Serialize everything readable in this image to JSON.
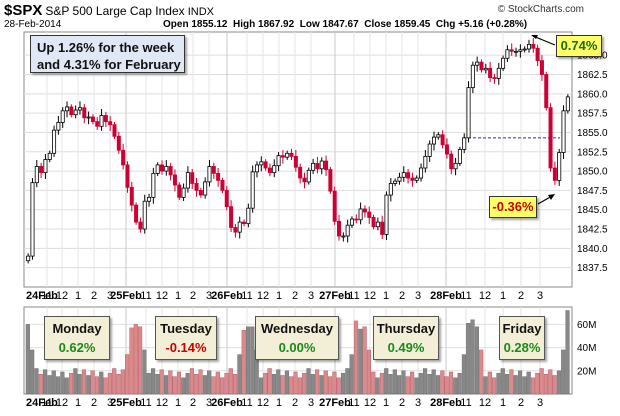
{
  "header": {
    "symbol": "$SPX",
    "name": "S&P 500 Large Cap Index",
    "exchange": "INDX",
    "date": "28-Feb-2014",
    "ohlc_text": "Open 1855.12  High 1867.92  Low 1847.67  Close 1859.45  Chg +5.16 (+0.28%)",
    "watermark": "© StockCharts.com"
  },
  "annotations": {
    "week_line1": "Up 1.26% for the week",
    "week_line2": "and 4.31% for February",
    "high_pct": "0.74%",
    "low_pct": "-0.36%"
  },
  "days": [
    {
      "name": "Monday",
      "value": "0.62%",
      "color": "#1a8a1a"
    },
    {
      "name": "Tuesday",
      "value": "-0.14%",
      "color": "#cc0000"
    },
    {
      "name": "Wednesday",
      "value": "0.00%",
      "color": "#1a8a1a"
    },
    {
      "name": "Thursday",
      "value": "0.49%",
      "color": "#1a8a1a"
    },
    {
      "name": "Friday",
      "value": "0.28%",
      "color": "#1a8a1a"
    }
  ],
  "colors": {
    "up": "#000000",
    "down": "#cc0033",
    "vol_up": "#888888",
    "vol_down": "#d98a8a",
    "ann_yellow": "#ffff66",
    "day_bg": "#f2efd6"
  },
  "chart_data": {
    "type": "candlestick",
    "title": "S&P 500 Large Cap Index",
    "ylim": [
      1835,
      1868
    ],
    "y_ticks": [
      "1837.5",
      "1840.0",
      "1842.5",
      "1845.0",
      "1847.5",
      "1850.0",
      "1852.5",
      "1855.0",
      "1857.5",
      "1860.0",
      "1862.5",
      "1865.0"
    ],
    "x_tick_labels": [
      "24Feb",
      "11",
      "12",
      "1",
      "2",
      "3",
      "25Feb",
      "11",
      "12",
      "1",
      "2",
      "3",
      "26Feb",
      "11",
      "12",
      "1",
      "2",
      "3",
      "27Feb",
      "11",
      "12",
      "1",
      "2",
      "3",
      "28Feb",
      "11",
      "12",
      "1",
      "2",
      "3"
    ],
    "previous_close_reference": 1854.3,
    "volume_ticks": [
      "20M",
      "40M",
      "60M"
    ],
    "volume_ylim": [
      0,
      75
    ],
    "closes": [
      1839.0,
      1848.5,
      1850.6,
      1849.8,
      1851.5,
      1852.3,
      1855.3,
      1856.3,
      1857.8,
      1858.3,
      1857.3,
      1857.9,
      1858.2,
      1856.9,
      1857.0,
      1856.4,
      1855.8,
      1857.2,
      1856.4,
      1856.0,
      1854.5,
      1852.7,
      1850.8,
      1847.9,
      1845.6,
      1843.4,
      1842.5,
      1846.1,
      1846.6,
      1849.7,
      1850.8,
      1850.0,
      1850.6,
      1849.5,
      1848.2,
      1846.6,
      1847.8,
      1849.8,
      1848.4,
      1847.5,
      1846.9,
      1848.6,
      1850.6,
      1849.7,
      1848.8,
      1847.5,
      1845.4,
      1842.7,
      1842.1,
      1843.4,
      1843.2,
      1845.2,
      1849.9,
      1850.8,
      1851.2,
      1850.4,
      1849.8,
      1850.7,
      1852.0,
      1851.8,
      1852.3,
      1851.9,
      1850.5,
      1849.1,
      1848.6,
      1850.1,
      1851.0,
      1850.3,
      1851.3,
      1850.2,
      1847.4,
      1843.5,
      1841.6,
      1841.6,
      1843.0,
      1843.8,
      1843.7,
      1845.1,
      1844.7,
      1844.0,
      1842.8,
      1843.4,
      1841.8,
      1846.9,
      1848.4,
      1848.7,
      1849.2,
      1849.8,
      1849.1,
      1848.8,
      1849.1,
      1850.4,
      1851.9,
      1853.5,
      1854.4,
      1854.7,
      1853.4,
      1852.2,
      1850.3,
      1851.0,
      1852.8,
      1854.3,
      1860.8,
      1863.7,
      1864.1,
      1863.1,
      1863.3,
      1862.1,
      1862.0,
      1863.3,
      1864.6,
      1865.7,
      1865.5,
      1865.5,
      1865.7,
      1865.8,
      1866.4,
      1865.9,
      1864.3,
      1862.5,
      1858.2,
      1850.4,
      1848.8,
      1852.4,
      1857.8,
      1859.6
    ]
  }
}
